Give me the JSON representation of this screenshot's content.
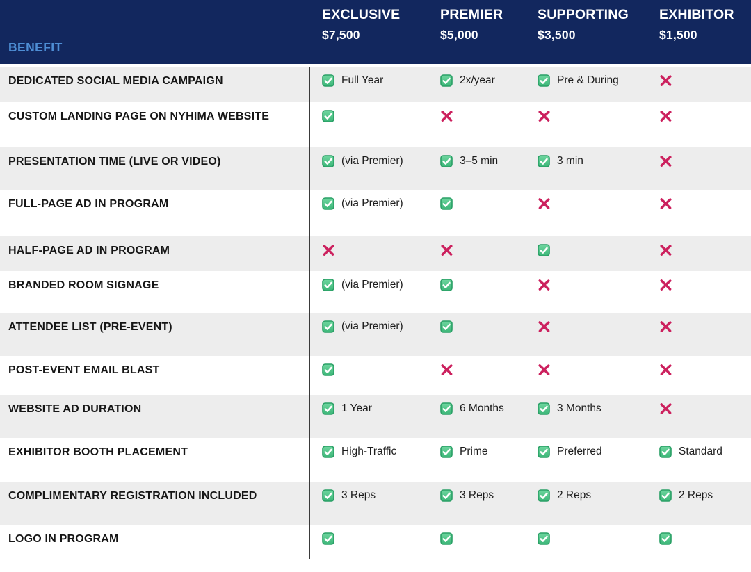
{
  "header": {
    "benefit_label": "BENEFIT",
    "tiers": [
      {
        "name": "EXCLUSIVE",
        "price": "$7,500"
      },
      {
        "name": "PREMIER",
        "price": "$5,000"
      },
      {
        "name": "SUPPORTING",
        "price": "$3,500"
      },
      {
        "name": "EXHIBITOR",
        "price": "$1,500"
      }
    ]
  },
  "rows": [
    {
      "benefit": "DEDICATED SOCIAL MEDIA CAMPAIGN",
      "cells": [
        {
          "mark": "check",
          "note": "Full Year"
        },
        {
          "mark": "check",
          "note": "2x/year"
        },
        {
          "mark": "check",
          "note": "Pre & During"
        },
        {
          "mark": "cross",
          "note": ""
        }
      ]
    },
    {
      "benefit": "CUSTOM LANDING PAGE ON NYHIMA WEBSITE",
      "cells": [
        {
          "mark": "check",
          "note": ""
        },
        {
          "mark": "cross",
          "note": ""
        },
        {
          "mark": "cross",
          "note": ""
        },
        {
          "mark": "cross",
          "note": ""
        }
      ]
    },
    {
      "benefit": "PRESENTATION TIME (LIVE OR VIDEO)",
      "cells": [
        {
          "mark": "check",
          "note": "(via Premier)"
        },
        {
          "mark": "check",
          "note": "3–5 min"
        },
        {
          "mark": "check",
          "note": "3 min"
        },
        {
          "mark": "cross",
          "note": ""
        }
      ]
    },
    {
      "benefit": "FULL-PAGE AD IN PROGRAM",
      "cells": [
        {
          "mark": "check",
          "note": "(via Premier)"
        },
        {
          "mark": "check",
          "note": ""
        },
        {
          "mark": "cross",
          "note": ""
        },
        {
          "mark": "cross",
          "note": ""
        }
      ]
    },
    {
      "benefit": "HALF-PAGE AD IN PROGRAM",
      "cells": [
        {
          "mark": "cross",
          "note": ""
        },
        {
          "mark": "cross",
          "note": ""
        },
        {
          "mark": "check",
          "note": ""
        },
        {
          "mark": "cross",
          "note": ""
        }
      ]
    },
    {
      "benefit": "BRANDED ROOM SIGNAGE",
      "cells": [
        {
          "mark": "check",
          "note": "(via Premier)"
        },
        {
          "mark": "check",
          "note": ""
        },
        {
          "mark": "cross",
          "note": ""
        },
        {
          "mark": "cross",
          "note": ""
        }
      ]
    },
    {
      "benefit": "ATTENDEE LIST (PRE-EVENT)",
      "cells": [
        {
          "mark": "check",
          "note": "(via Premier)"
        },
        {
          "mark": "check",
          "note": ""
        },
        {
          "mark": "cross",
          "note": ""
        },
        {
          "mark": "cross",
          "note": ""
        }
      ]
    },
    {
      "benefit": "POST-EVENT EMAIL BLAST",
      "cells": [
        {
          "mark": "check",
          "note": ""
        },
        {
          "mark": "cross",
          "note": ""
        },
        {
          "mark": "cross",
          "note": ""
        },
        {
          "mark": "cross",
          "note": ""
        }
      ]
    },
    {
      "benefit": "WEBSITE AD DURATION",
      "cells": [
        {
          "mark": "check",
          "note": "1 Year"
        },
        {
          "mark": "check",
          "note": "6 Months"
        },
        {
          "mark": "check",
          "note": "3 Months"
        },
        {
          "mark": "cross",
          "note": ""
        }
      ]
    },
    {
      "benefit": "EXHIBITOR BOOTH PLACEMENT",
      "cells": [
        {
          "mark": "check",
          "note": "High-Traffic"
        },
        {
          "mark": "check",
          "note": "Prime"
        },
        {
          "mark": "check",
          "note": "Preferred"
        },
        {
          "mark": "check",
          "note": "Standard"
        }
      ]
    },
    {
      "benefit": "COMPLIMENTARY REGISTRATION INCLUDED",
      "cells": [
        {
          "mark": "check",
          "note": "3 Reps"
        },
        {
          "mark": "check",
          "note": "3 Reps"
        },
        {
          "mark": "check",
          "note": "2 Reps"
        },
        {
          "mark": "check",
          "note": "2 Reps"
        }
      ]
    },
    {
      "benefit": "LOGO IN PROGRAM",
      "cells": [
        {
          "mark": "check",
          "note": ""
        },
        {
          "mark": "check",
          "note": ""
        },
        {
          "mark": "check",
          "note": ""
        },
        {
          "mark": "check",
          "note": ""
        }
      ]
    }
  ],
  "icons": {
    "included": "check-icon",
    "not_included": "cross-icon"
  },
  "colors": {
    "header_bg": "#12275E",
    "header_text": "#FFFFFF",
    "benefit_header_text": "#4E8ED5",
    "row_alt_bg": "#EDEDED",
    "row_bg": "#FFFFFF",
    "check_green": "#44BE81",
    "check_border": "#2AA066",
    "cross_red": "#CC215E",
    "divider": "#3A3A3A",
    "label_text": "#161616"
  }
}
